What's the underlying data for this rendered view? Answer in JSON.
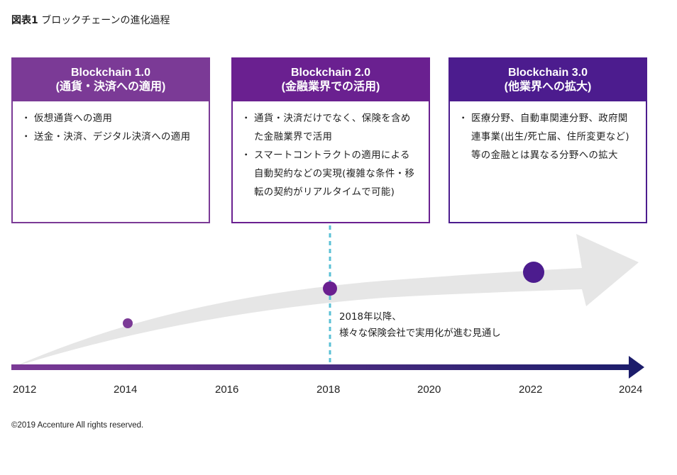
{
  "figure": {
    "label": "図表1",
    "title": "ブロックチェーンの進化過程"
  },
  "boxes": [
    {
      "title": "Blockchain 1.0",
      "subtitle": "(通貨・決済への適用)",
      "items": [
        "仮想通貨への適用",
        "送金・決済、デジタル決済への適用"
      ]
    },
    {
      "title": "Blockchain 2.0",
      "subtitle": "(金融業界での活用)",
      "items": [
        "通貨・決済だけでなく、保険を含めた金融業界で活用",
        "スマートコントラクトの適用による自動契約などの実現(複雑な条件・移転の契約がリアルタイムで可能)"
      ]
    },
    {
      "title": "Blockchain 3.0",
      "subtitle": "(他業界への拡大)",
      "items": [
        "医療分野、自動車関連分野、政府関連事業(出生/死亡届、住所変更など)等の金融とは異なる分野への拡大"
      ]
    }
  ],
  "annotation": {
    "line1": "2018年以降、",
    "line2": "様々な保険会社で実用化が進む見通し"
  },
  "years": [
    "2012",
    "2014",
    "2016",
    "2018",
    "2020",
    "2022",
    "2024"
  ],
  "milestones": [
    "2014",
    "2018",
    "2022"
  ],
  "copyright": "©2019 Accenture All rights reserved.",
  "colors": {
    "purple_light": "#7b3a96",
    "purple_mid": "#6a2090",
    "purple_dark": "#4c1c8e",
    "navy": "#1c1d6b",
    "dashed": "#5bc0d6",
    "arrow_bg": "#e6e6e6"
  }
}
